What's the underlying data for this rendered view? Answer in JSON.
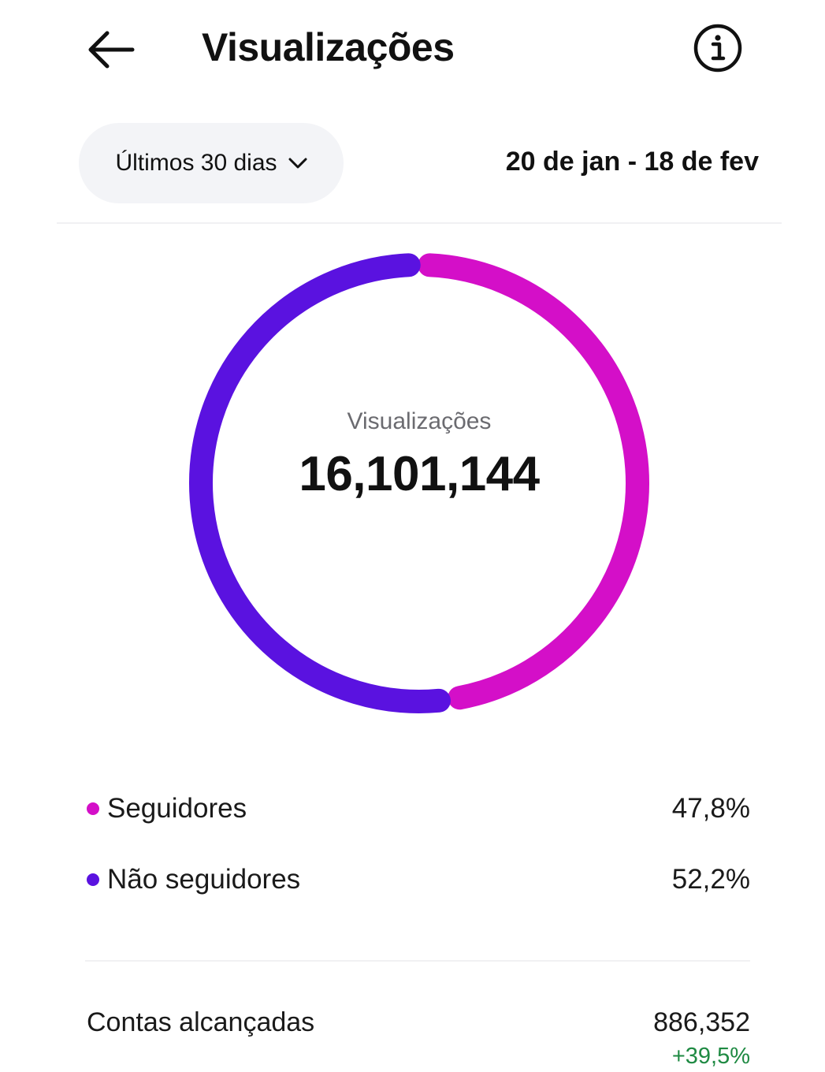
{
  "header": {
    "title": "Visualizações",
    "back_icon": "arrow-left-icon",
    "info_icon": "info-icon"
  },
  "filter": {
    "period_label": "Últimos 30 dias",
    "period_icon": "chevron-down-icon",
    "date_range": "20 de jan - 18 de fev"
  },
  "donut": {
    "center_label": "Visualizações",
    "center_value": "16,101,144"
  },
  "chart_data": {
    "type": "pie",
    "categories": [
      "Seguidores",
      "Não seguidores"
    ],
    "values": [
      47.8,
      52.2
    ],
    "colors": [
      "#d40fc8",
      "#5a12e0"
    ],
    "title": "Visualizações"
  },
  "legend": [
    {
      "label": "Seguidores",
      "value": "47,8%",
      "color": "#d40fc8"
    },
    {
      "label": "Não seguidores",
      "value": "52,2%",
      "color": "#5a12e0"
    }
  ],
  "reach": {
    "label": "Contas alcançadas",
    "value": "886,352",
    "change": "+39,5%",
    "change_color": "#1f8a43"
  }
}
